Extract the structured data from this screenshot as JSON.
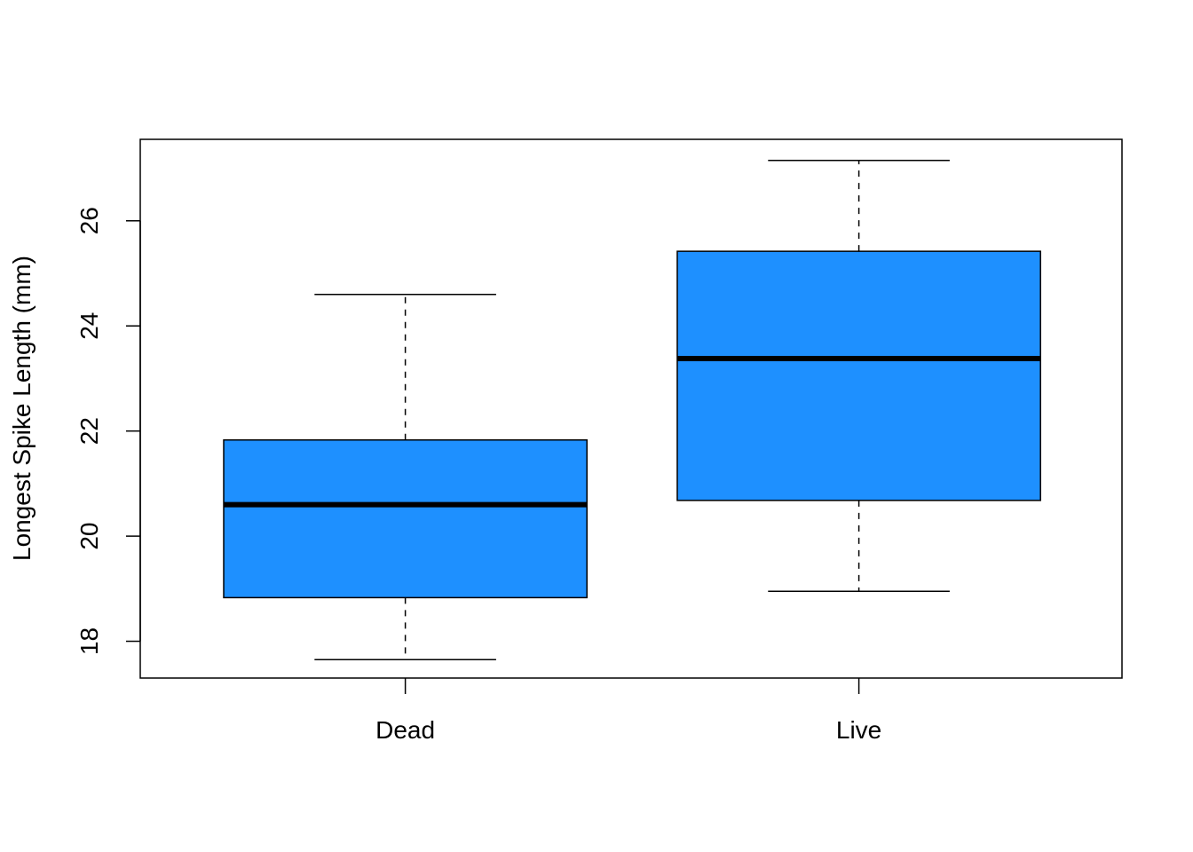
{
  "chart_data": {
    "type": "box",
    "title": "",
    "xlabel": "",
    "ylabel": "Longest Spike Length (mm)",
    "ylim": [
      17.3,
      27.55
    ],
    "yticks": [
      18,
      20,
      22,
      24,
      26
    ],
    "grid": false,
    "legend": "none",
    "box_color": "#1E90FF",
    "categories": [
      "Dead",
      "Live"
    ],
    "boxes": [
      {
        "category": "Dead",
        "whisker_low": 17.65,
        "q1": 18.83,
        "median": 20.6,
        "q3": 21.83,
        "whisker_high": 24.6
      },
      {
        "category": "Live",
        "whisker_low": 18.95,
        "q1": 20.68,
        "median": 23.38,
        "q3": 25.42,
        "whisker_high": 27.15
      }
    ]
  }
}
